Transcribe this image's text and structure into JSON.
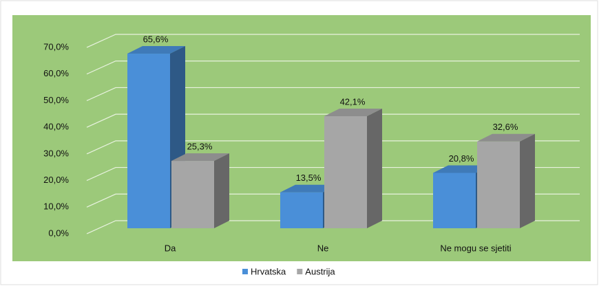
{
  "chart_data": {
    "type": "bar3d",
    "categories": [
      "Da",
      "Ne",
      "Ne mogu se sjetiti"
    ],
    "series": [
      {
        "name": "Hrvatska",
        "color": "#4a8fd8",
        "values": [
          65.6,
          13.5,
          20.8
        ],
        "value_labels": [
          "65,6%",
          "13,5%",
          "20,8%"
        ]
      },
      {
        "name": "Austrija",
        "color": "#a6a6a6",
        "values": [
          25.3,
          42.1,
          32.6
        ],
        "value_labels": [
          "25,3%",
          "42,1%",
          "32,6%"
        ]
      }
    ],
    "ylim": [
      0,
      70
    ],
    "yticks": [
      {
        "value": 0,
        "label": "0,0%"
      },
      {
        "value": 10,
        "label": "10,0%"
      },
      {
        "value": 20,
        "label": "20,0%"
      },
      {
        "value": 30,
        "label": "30,0%"
      },
      {
        "value": 40,
        "label": "40,0%"
      },
      {
        "value": 50,
        "label": "50,0%"
      },
      {
        "value": 60,
        "label": "60,0%"
      },
      {
        "value": 70,
        "label": "70,0%"
      }
    ],
    "grid": true,
    "legend": "bottom",
    "background": "#9cc97a"
  }
}
